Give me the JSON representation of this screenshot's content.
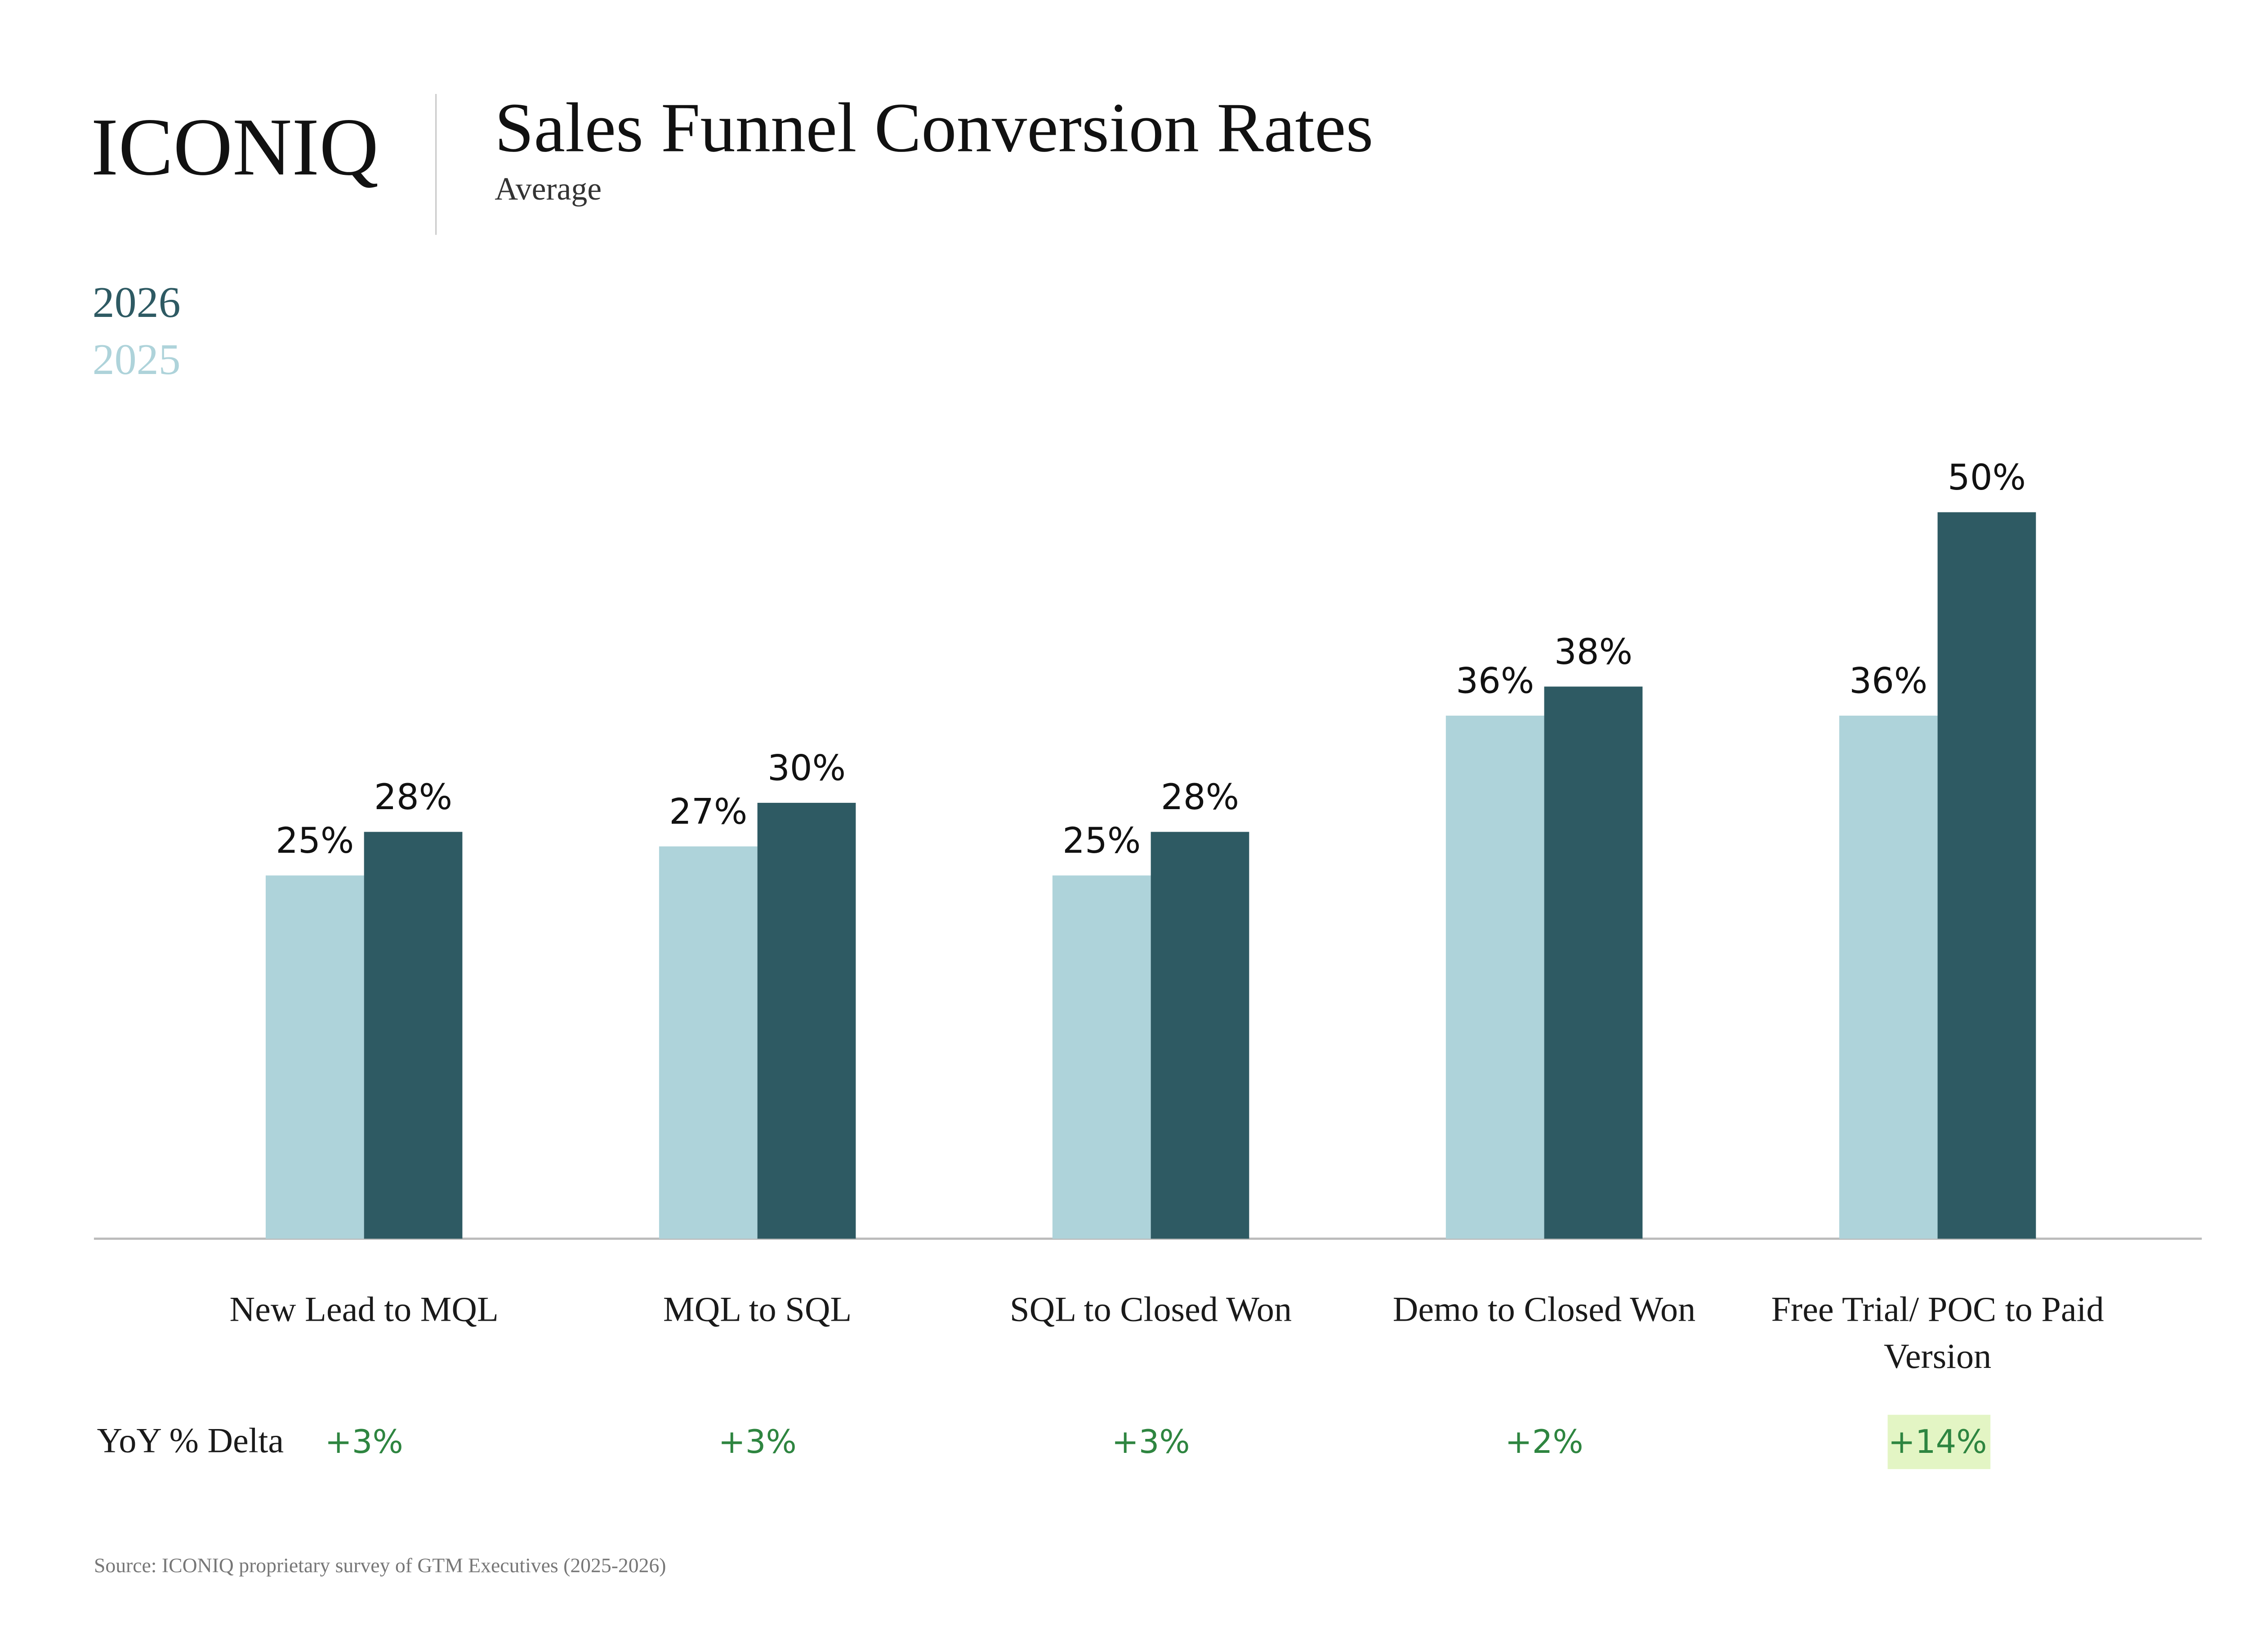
{
  "logo": "ICONIQ",
  "chart_data": {
    "type": "bar",
    "title": "Sales Funnel Conversion Rates",
    "subtitle": "Average",
    "categories": [
      "New Lead to MQL",
      "MQL to SQL",
      "SQL to Closed Won",
      "Demo to Closed Won",
      "Free Trial/ POC to Paid Version"
    ],
    "series": [
      {
        "name": "2025",
        "color": "#aed3da",
        "values": [
          25,
          27,
          25,
          36,
          36
        ],
        "value_labels": [
          "25%",
          "27%",
          "25%",
          "36%",
          "36%"
        ]
      },
      {
        "name": "2026",
        "color": "#2e5a63",
        "values": [
          28,
          30,
          28,
          38,
          50
        ],
        "value_labels": [
          "28%",
          "30%",
          "28%",
          "38%",
          "50%"
        ]
      }
    ],
    "ylim": [
      0,
      55
    ],
    "delta_label": "YoY % Delta",
    "deltas": [
      "+3%",
      "+3%",
      "+3%",
      "+2%",
      "+14%"
    ],
    "delta_color": "#2e8540",
    "delta_highlight": [
      false,
      false,
      false,
      false,
      true
    ],
    "delta_highlight_color": "#e3f5c4",
    "source": "Source: ICONIQ proprietary survey of GTM Executives (2025-2026)"
  }
}
